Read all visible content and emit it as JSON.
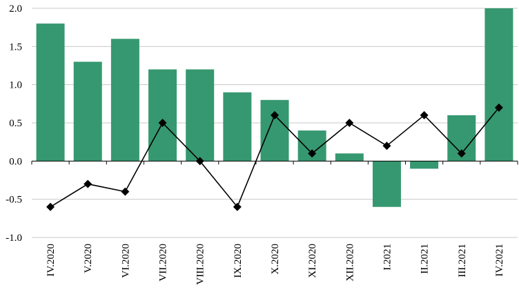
{
  "chart_data": {
    "type": "bar",
    "categories": [
      "IV.2020",
      "V.2020",
      "VI.2020",
      "VII.2020",
      "VIII.2020",
      "IX.2020",
      "X.2020",
      "XI.2020",
      "XII.2020",
      "I.2021",
      "II.2021",
      "III.2021",
      "IV.2021"
    ],
    "series": [
      {
        "type": "bar",
        "color": "#369870",
        "values": [
          1.8,
          1.3,
          1.6,
          1.2,
          1.2,
          0.9,
          0.8,
          0.4,
          0.1,
          -0.6,
          -0.1,
          0.6,
          2.0
        ]
      },
      {
        "type": "line",
        "marker": "diamond",
        "color": "#000000",
        "values": [
          -0.6,
          -0.3,
          -0.4,
          0.5,
          0.0,
          -0.6,
          0.6,
          0.1,
          0.5,
          0.2,
          0.6,
          0.1,
          0.7
        ]
      }
    ],
    "y_ticks": [
      "2.0",
      "1.5",
      "1.0",
      "0.5",
      "0.0",
      "-0.5",
      "-1.0"
    ],
    "ylim": [
      -1.0,
      2.0
    ],
    "title": "",
    "xlabel": "",
    "ylabel": "",
    "grid": true,
    "legend": "none"
  }
}
